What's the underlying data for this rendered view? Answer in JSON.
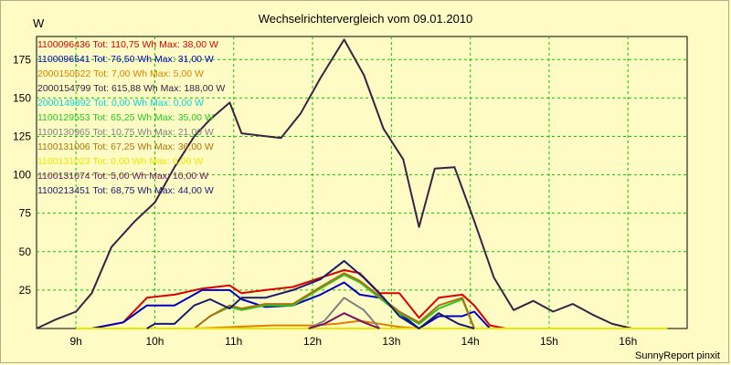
{
  "chart_data": {
    "type": "line",
    "title": "Wechselrichtervergleich vom 09.01.2010",
    "ylabel": "W",
    "xlabel": "",
    "footer": "SunnyReport pinxit",
    "ylim": [
      0,
      190
    ],
    "xlim": [
      8.5,
      16.75
    ],
    "grid": true,
    "legend_placement": "top-left",
    "xticks": [
      9,
      10,
      11,
      12,
      13,
      14,
      15,
      16
    ],
    "xtick_labels": [
      "9h",
      "10h",
      "11h",
      "12h",
      "13h",
      "14h",
      "15h",
      "16h"
    ],
    "yticks": [
      25,
      50,
      75,
      100,
      125,
      150,
      175
    ],
    "ytick_labels": [
      "25",
      "50",
      "75",
      "100",
      "125",
      "150",
      "175"
    ],
    "series": [
      {
        "name": "1100096436",
        "legend": "1100096436 Tot: 110,75 Wh Max: 38,00 W",
        "color": "#dd0000",
        "x": [
          9.2,
          9.6,
          9.9,
          10.25,
          10.6,
          10.95,
          11.1,
          11.4,
          11.75,
          12.1,
          12.4,
          12.6,
          12.85,
          13.1,
          13.35,
          13.6,
          13.9,
          14.05,
          14.25,
          14.45,
          14.8
        ],
        "y": [
          0,
          4,
          20,
          22,
          26,
          28,
          23,
          25,
          27,
          33,
          38,
          36,
          23,
          23,
          7,
          20,
          22,
          15,
          2,
          0,
          0
        ]
      },
      {
        "name": "1100096541",
        "legend": "1100096541 Tot: 76,50 Wh Max: 31,00 W",
        "color": "#0000c0",
        "x": [
          9.2,
          9.6,
          9.9,
          10.25,
          10.6,
          10.95,
          11.1,
          11.4,
          11.75,
          12.1,
          12.4,
          12.6,
          12.85,
          13.1,
          13.35,
          13.6,
          13.9,
          14.05,
          14.25,
          14.45
        ],
        "y": [
          0,
          4,
          15,
          15,
          25,
          25,
          19,
          14,
          15,
          22,
          30,
          22,
          20,
          10,
          0,
          8,
          8,
          11,
          0,
          0
        ]
      },
      {
        "name": "2000150622",
        "legend": "2000150622 Tot: 7,00 Wh Max: 5,00 W",
        "color": "#e08000",
        "x": [
          10.5,
          11.0,
          11.5,
          12.0,
          12.3,
          12.6,
          12.85,
          13.1,
          13.35
        ],
        "y": [
          0,
          1,
          2,
          2,
          3,
          5,
          3,
          1,
          0
        ]
      },
      {
        "name": "2000154799",
        "legend": "2000154799 Tot: 615,88 Wh Max: 188,00 W",
        "color": "#3a2244",
        "x": [
          8.5,
          8.75,
          9.0,
          9.2,
          9.45,
          9.75,
          10.0,
          10.25,
          10.5,
          10.7,
          10.95,
          11.1,
          11.6,
          11.85,
          12.1,
          12.4,
          12.65,
          12.9,
          13.15,
          13.35,
          13.55,
          13.8,
          14.05,
          14.3,
          14.55,
          14.8,
          15.05,
          15.3,
          15.55,
          15.8,
          16.05,
          16.3,
          16.5
        ],
        "y": [
          0,
          6,
          11,
          23,
          53,
          70,
          82,
          105,
          125,
          136,
          147,
          127,
          124,
          140,
          163,
          188,
          165,
          130,
          110,
          66,
          104,
          105,
          70,
          33,
          12,
          18,
          11,
          16,
          9,
          3,
          0,
          0,
          0
        ]
      },
      {
        "name": "2000149892",
        "legend": "2000149892 Tot: 0,00 Wh Max: 0,00 W",
        "color": "#00d8d8",
        "x": [
          9.0,
          16.5
        ],
        "y": [
          0,
          0
        ]
      },
      {
        "name": "1100129553",
        "legend": "1100129553 Tot: 65,25 Wh Max: 35,00 W",
        "color": "#22cc22",
        "x": [
          10.5,
          10.7,
          10.95,
          11.1,
          11.4,
          11.75,
          12.1,
          12.4,
          12.6,
          12.85,
          13.1,
          13.35,
          13.6,
          13.9,
          14.05
        ],
        "y": [
          0,
          8,
          14,
          12,
          15,
          15,
          26,
          35,
          30,
          20,
          10,
          3,
          13,
          19,
          0
        ]
      },
      {
        "name": "1100130965",
        "legend": "1100130965 Tot: 10,75 Wh Max: 21,00 W",
        "color": "#808080",
        "x": [
          11.95,
          12.15,
          12.4,
          12.65,
          12.85,
          13.0
        ],
        "y": [
          0,
          5,
          20,
          12,
          0,
          0
        ]
      },
      {
        "name": "1100131006",
        "legend": "1100131006 Tot: 67,25 Wh Max: 36,00 W",
        "color": "#b07010",
        "x": [
          10.5,
          10.7,
          10.95,
          11.1,
          11.4,
          11.75,
          12.1,
          12.4,
          12.6,
          12.85,
          13.1,
          13.35,
          13.6,
          13.9,
          14.05
        ],
        "y": [
          0,
          8,
          15,
          13,
          16,
          16,
          27,
          36,
          31,
          21,
          11,
          4,
          15,
          20,
          0
        ]
      },
      {
        "name": "1100131023",
        "legend": "1100131023 Tot: 0,00 Wh Max: 0,00 W",
        "color": "#e8e800",
        "x": [
          9.0,
          16.5
        ],
        "y": [
          0,
          0
        ]
      },
      {
        "name": "1100131074",
        "legend": "1100131074 Tot: 5,00 Wh Max: 10,00 W",
        "color": "#7a1060",
        "x": [
          11.95,
          12.15,
          12.4,
          12.65,
          12.85
        ],
        "y": [
          0,
          3,
          10,
          4,
          0
        ]
      },
      {
        "name": "1100213451",
        "legend": "1100213451 Tot: 68,75 Wh Max: 44,00 W",
        "color": "#1a1a70",
        "x": [
          9.9,
          10.0,
          10.25,
          10.5,
          10.7,
          10.95,
          11.1,
          11.4,
          11.75,
          12.1,
          12.4,
          12.65,
          12.9,
          13.1,
          13.35,
          13.6,
          13.85,
          14.05
        ],
        "y": [
          0,
          3,
          3,
          15,
          19,
          13,
          20,
          20,
          25,
          32,
          44,
          33,
          20,
          8,
          0,
          10,
          3,
          0
        ]
      }
    ]
  }
}
